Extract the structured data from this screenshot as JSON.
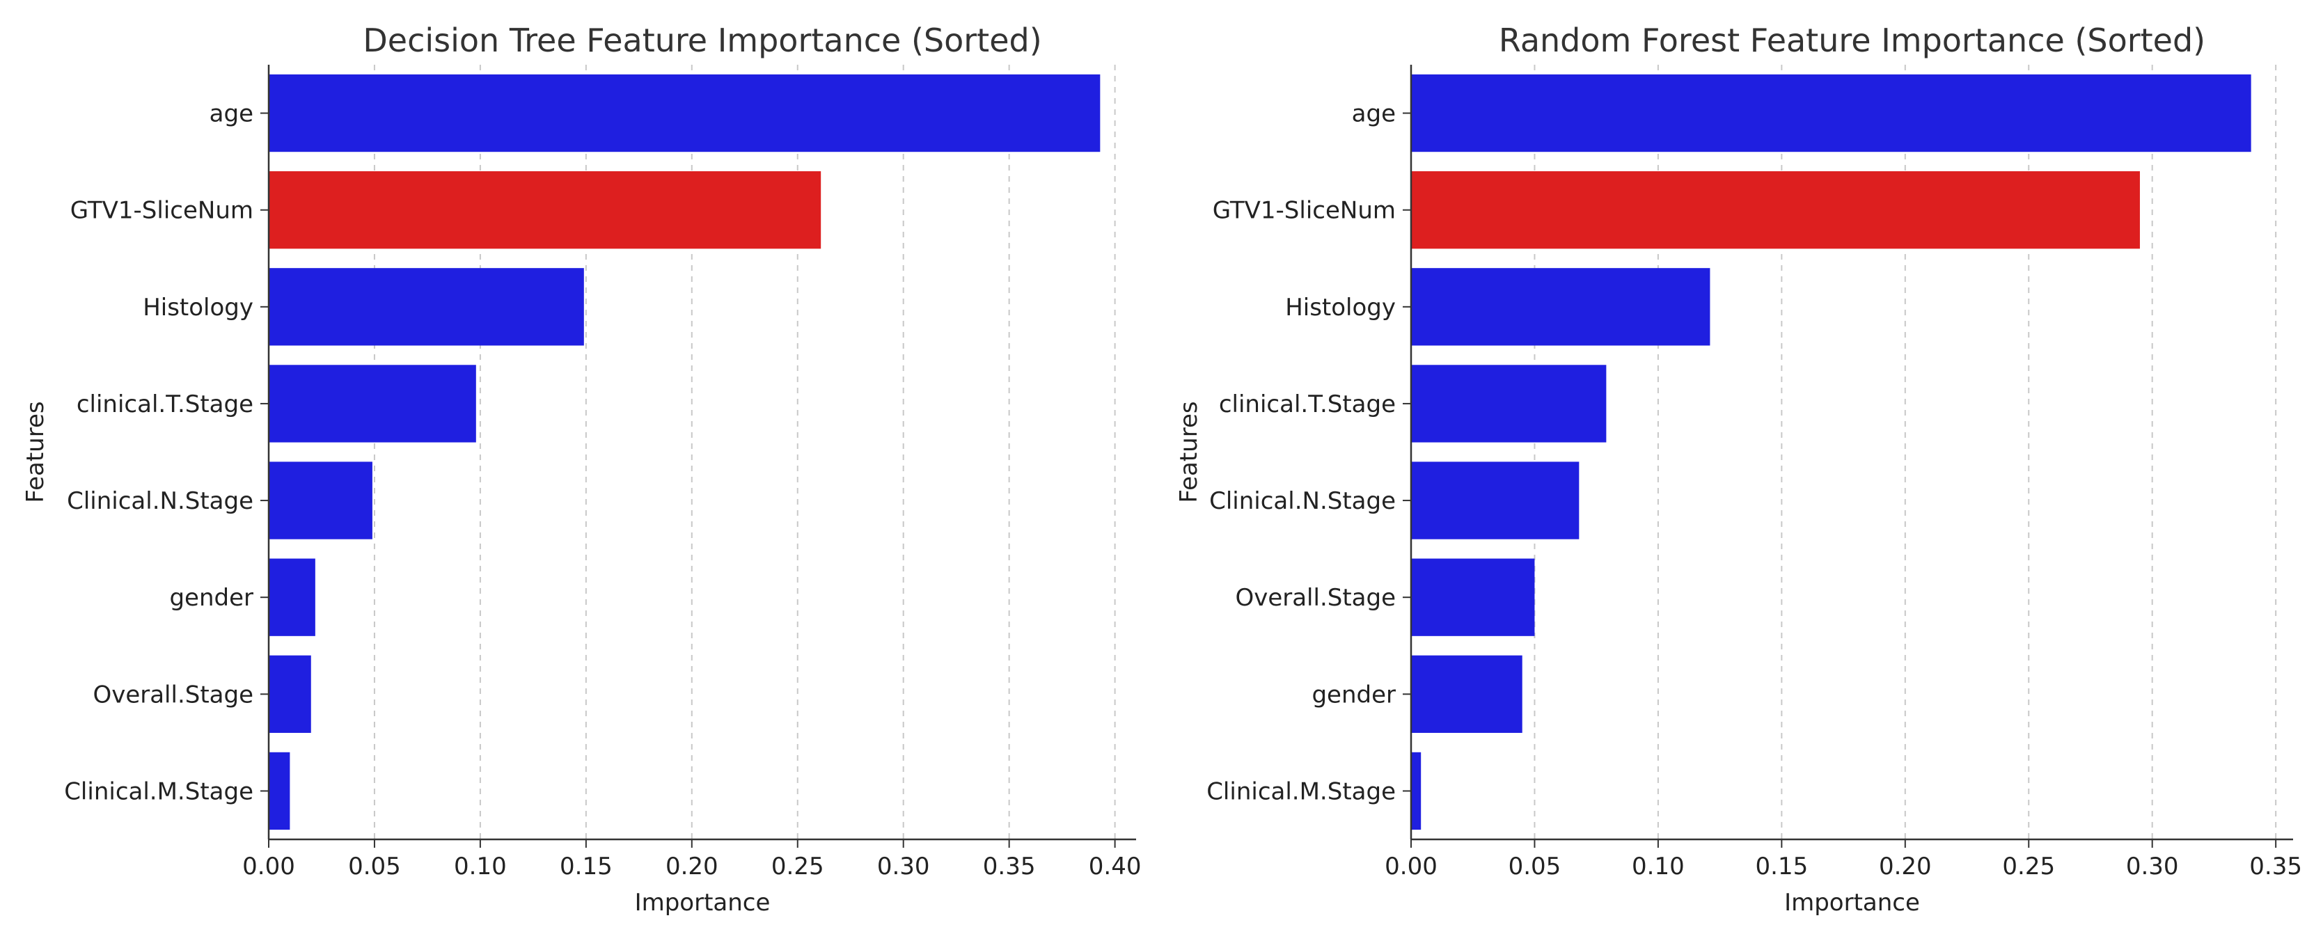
{
  "colors": {
    "default_bar": "#1f1fe0",
    "highlight_bar": "#dd1f1f",
    "grid": "#c8c8c8",
    "axis": "#333333"
  },
  "chart_data": [
    {
      "type": "bar",
      "orientation": "horizontal",
      "title": "Decision Tree Feature Importance (Sorted)",
      "xlabel": "Importance",
      "ylabel": "Features",
      "categories": [
        "age",
        "GTV1-SliceNum",
        "Histology",
        "clinical.T.Stage",
        "Clinical.N.Stage",
        "gender",
        "Overall.Stage",
        "Clinical.M.Stage"
      ],
      "values": [
        0.393,
        0.261,
        0.149,
        0.098,
        0.049,
        0.022,
        0.02,
        0.01
      ],
      "highlight": [
        "GTV1-SliceNum"
      ],
      "xlim": [
        0,
        0.41
      ],
      "xticks": [
        0.0,
        0.05,
        0.1,
        0.15,
        0.2,
        0.25,
        0.3,
        0.35,
        0.4
      ],
      "xtick_labels": [
        "0.00",
        "0.05",
        "0.10",
        "0.15",
        "0.20",
        "0.25",
        "0.30",
        "0.35",
        "0.40"
      ],
      "grid": "x, dashed"
    },
    {
      "type": "bar",
      "orientation": "horizontal",
      "title": "Random Forest Feature Importance (Sorted)",
      "xlabel": "Importance",
      "ylabel": "Features",
      "categories": [
        "age",
        "GTV1-SliceNum",
        "Histology",
        "clinical.T.Stage",
        "Clinical.N.Stage",
        "Overall.Stage",
        "gender",
        "Clinical.M.Stage"
      ],
      "values": [
        0.34,
        0.295,
        0.121,
        0.079,
        0.068,
        0.05,
        0.045,
        0.004
      ],
      "highlight": [
        "GTV1-SliceNum"
      ],
      "xlim": [
        0,
        0.357
      ],
      "xticks": [
        0.0,
        0.05,
        0.1,
        0.15,
        0.2,
        0.25,
        0.3,
        0.35
      ],
      "xtick_labels": [
        "0.00",
        "0.05",
        "0.10",
        "0.15",
        "0.20",
        "0.25",
        "0.30",
        "0.35"
      ],
      "grid": "x, dashed"
    }
  ]
}
